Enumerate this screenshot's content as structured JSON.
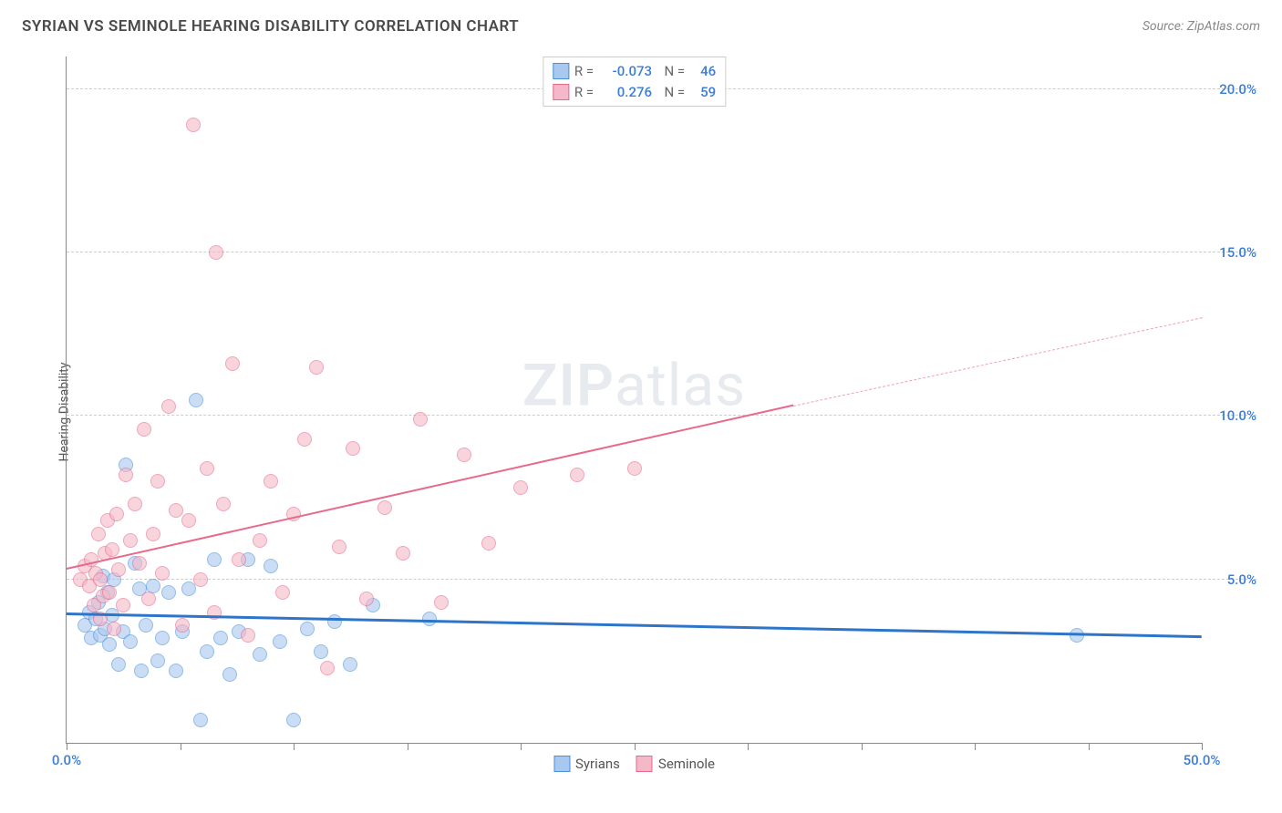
{
  "title": "SYRIAN VS SEMINOLE HEARING DISABILITY CORRELATION CHART",
  "source": "Source: ZipAtlas.com",
  "ylabel": "Hearing Disability",
  "watermark_bold": "ZIP",
  "watermark_light": "atlas",
  "chart": {
    "type": "scatter",
    "xlim": [
      0,
      50
    ],
    "ylim": [
      0,
      21
    ],
    "yticks": [
      5,
      10,
      15,
      20
    ],
    "ytick_labels": [
      "5.0%",
      "10.0%",
      "15.0%",
      "20.0%"
    ],
    "xtick_positions": [
      0,
      5,
      10,
      15,
      20,
      25,
      30,
      35,
      40,
      45,
      50
    ],
    "xtick_labels": {
      "0": "0.0%",
      "50": "50.0%"
    },
    "grid_color": "#cccccc",
    "axis_color": "#888888",
    "background_color": "#ffffff",
    "point_radius": 8,
    "point_opacity": 0.6,
    "series": [
      {
        "name": "Syrians",
        "fill": "#a8c8f0",
        "stroke": "#4a90d9",
        "r": "-0.073",
        "n": "46",
        "trend": {
          "x0": 0,
          "y0": 3.9,
          "x1": 50,
          "y1": 3.2,
          "color": "#2e75c9",
          "width": 3
        },
        "points": [
          [
            0.8,
            3.6
          ],
          [
            1.0,
            4.0
          ],
          [
            1.1,
            3.2
          ],
          [
            1.3,
            3.8
          ],
          [
            1.4,
            4.3
          ],
          [
            1.5,
            3.3
          ],
          [
            1.6,
            5.1
          ],
          [
            1.7,
            3.5
          ],
          [
            1.8,
            4.6
          ],
          [
            1.9,
            3.0
          ],
          [
            2.0,
            3.9
          ],
          [
            2.1,
            5.0
          ],
          [
            2.3,
            2.4
          ],
          [
            2.5,
            3.4
          ],
          [
            2.6,
            8.5
          ],
          [
            2.8,
            3.1
          ],
          [
            3.0,
            5.5
          ],
          [
            3.2,
            4.7
          ],
          [
            3.3,
            2.2
          ],
          [
            3.5,
            3.6
          ],
          [
            3.8,
            4.8
          ],
          [
            4.0,
            2.5
          ],
          [
            4.2,
            3.2
          ],
          [
            4.5,
            4.6
          ],
          [
            4.8,
            2.2
          ],
          [
            5.1,
            3.4
          ],
          [
            5.4,
            4.7
          ],
          [
            5.7,
            10.5
          ],
          [
            5.9,
            0.7
          ],
          [
            6.2,
            2.8
          ],
          [
            6.5,
            5.6
          ],
          [
            6.8,
            3.2
          ],
          [
            7.2,
            2.1
          ],
          [
            7.6,
            3.4
          ],
          [
            8.0,
            5.6
          ],
          [
            8.5,
            2.7
          ],
          [
            9.0,
            5.4
          ],
          [
            9.4,
            3.1
          ],
          [
            10.0,
            0.7
          ],
          [
            10.6,
            3.5
          ],
          [
            11.2,
            2.8
          ],
          [
            11.8,
            3.7
          ],
          [
            12.5,
            2.4
          ],
          [
            13.5,
            4.2
          ],
          [
            16.0,
            3.8
          ],
          [
            44.5,
            3.3
          ]
        ]
      },
      {
        "name": "Seminole",
        "fill": "#f5b8c8",
        "stroke": "#e86a8a",
        "r": "0.276",
        "n": "59",
        "trend_solid": {
          "x0": 0,
          "y0": 5.3,
          "x1": 32,
          "y1": 10.3,
          "color": "#e86a8a",
          "width": 2
        },
        "trend_dash": {
          "x0": 32,
          "y0": 10.3,
          "x1": 50,
          "y1": 13.0,
          "color": "#f0a0b5",
          "width": 1.5
        },
        "points": [
          [
            0.6,
            5.0
          ],
          [
            0.8,
            5.4
          ],
          [
            1.0,
            4.8
          ],
          [
            1.1,
            5.6
          ],
          [
            1.2,
            4.2
          ],
          [
            1.3,
            5.2
          ],
          [
            1.4,
            6.4
          ],
          [
            1.5,
            3.8
          ],
          [
            1.5,
            5.0
          ],
          [
            1.6,
            4.5
          ],
          [
            1.7,
            5.8
          ],
          [
            1.8,
            6.8
          ],
          [
            1.9,
            4.6
          ],
          [
            2.0,
            5.9
          ],
          [
            2.1,
            3.5
          ],
          [
            2.2,
            7.0
          ],
          [
            2.3,
            5.3
          ],
          [
            2.5,
            4.2
          ],
          [
            2.6,
            8.2
          ],
          [
            2.8,
            6.2
          ],
          [
            3.0,
            7.3
          ],
          [
            3.2,
            5.5
          ],
          [
            3.4,
            9.6
          ],
          [
            3.6,
            4.4
          ],
          [
            3.8,
            6.4
          ],
          [
            4.0,
            8.0
          ],
          [
            4.2,
            5.2
          ],
          [
            4.5,
            10.3
          ],
          [
            4.8,
            7.1
          ],
          [
            5.1,
            3.6
          ],
          [
            5.4,
            6.8
          ],
          [
            5.6,
            18.9
          ],
          [
            5.9,
            5.0
          ],
          [
            6.2,
            8.4
          ],
          [
            6.5,
            4.0
          ],
          [
            6.6,
            15.0
          ],
          [
            6.9,
            7.3
          ],
          [
            7.3,
            11.6
          ],
          [
            7.6,
            5.6
          ],
          [
            8.0,
            3.3
          ],
          [
            8.5,
            6.2
          ],
          [
            9.0,
            8.0
          ],
          [
            9.5,
            4.6
          ],
          [
            10.0,
            7.0
          ],
          [
            10.5,
            9.3
          ],
          [
            11.0,
            11.5
          ],
          [
            11.5,
            2.3
          ],
          [
            12.0,
            6.0
          ],
          [
            12.6,
            9.0
          ],
          [
            13.2,
            4.4
          ],
          [
            14.0,
            7.2
          ],
          [
            14.8,
            5.8
          ],
          [
            15.6,
            9.9
          ],
          [
            16.5,
            4.3
          ],
          [
            17.5,
            8.8
          ],
          [
            18.6,
            6.1
          ],
          [
            20.0,
            7.8
          ],
          [
            22.5,
            8.2
          ],
          [
            25.0,
            8.4
          ]
        ]
      }
    ]
  },
  "legend_bottom": [
    {
      "label": "Syrians",
      "fill": "#a8c8f0",
      "stroke": "#4a90d9"
    },
    {
      "label": "Seminole",
      "fill": "#f5b8c8",
      "stroke": "#e86a8a"
    }
  ],
  "colors": {
    "value_text": "#3b7dd8",
    "label_text": "#666666"
  }
}
